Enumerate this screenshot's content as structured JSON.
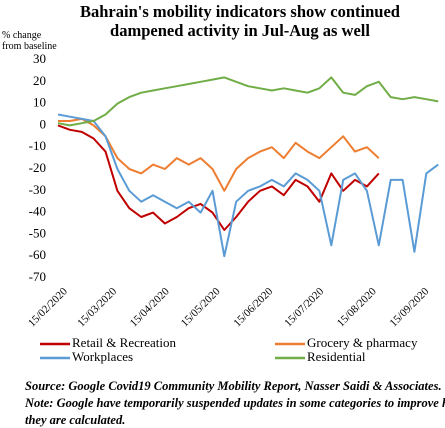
{
  "chart_data": {
    "type": "line",
    "title": "Bahrain's mobility indicators show continued dampened activity in Jul-Aug as well",
    "y_label": "% change from baseline",
    "caption": "Source: Google Covid19 Community Mobility Report, Nasser Saidi & Associates. Note: Google have temporarily suspended updates in some categories to improve how they are calculated.",
    "x": [
      "2020-02-15",
      "2020-02-22",
      "2020-02-29",
      "2020-03-07",
      "2020-03-14",
      "2020-03-21",
      "2020-03-28",
      "2020-04-04",
      "2020-04-11",
      "2020-04-18",
      "2020-04-25",
      "2020-05-02",
      "2020-05-09",
      "2020-05-16",
      "2020-05-23",
      "2020-05-30",
      "2020-06-06",
      "2020-06-13",
      "2020-06-20",
      "2020-06-27",
      "2020-07-04",
      "2020-07-11",
      "2020-07-18",
      "2020-07-25",
      "2020-08-01",
      "2020-08-08",
      "2020-08-15",
      "2020-08-22",
      "2020-08-29",
      "2020-09-05",
      "2020-09-12",
      "2020-09-19",
      "2020-09-26"
    ],
    "series": [
      {
        "name": "Retail & Recreation",
        "color": "#c00000",
        "values": [
          0,
          -2,
          -3,
          -6,
          -12,
          -30,
          -38,
          -42,
          -40,
          -45,
          -42,
          -38,
          -36,
          -40,
          -48,
          -42,
          -35,
          -30,
          -28,
          -32,
          -25,
          -28,
          -35,
          -22,
          -30,
          -25,
          -28,
          -22,
          null,
          null,
          null,
          null,
          null
        ]
      },
      {
        "name": "Grocery & pharmacy",
        "color": "#ed7d31",
        "values": [
          2,
          2,
          3,
          0,
          -5,
          -15,
          -20,
          -22,
          -18,
          -20,
          -15,
          -18,
          -15,
          -20,
          -30,
          -20,
          -15,
          -12,
          -10,
          -15,
          -8,
          -12,
          -15,
          -10,
          -5,
          -12,
          -10,
          -15,
          null,
          null,
          null,
          null,
          null
        ]
      },
      {
        "name": "Workplaces",
        "color": "#5b9bd5",
        "values": [
          5,
          4,
          3,
          2,
          -5,
          -20,
          -30,
          -35,
          -32,
          -35,
          -38,
          -35,
          -40,
          -30,
          -60,
          -35,
          -30,
          -28,
          -25,
          -28,
          -22,
          -25,
          -30,
          -55,
          -25,
          -22,
          -30,
          -55,
          -25,
          -25,
          -58,
          -22,
          -18
        ]
      },
      {
        "name": "Residential",
        "color": "#70ad47",
        "values": [
          1,
          0,
          1,
          2,
          5,
          10,
          13,
          15,
          16,
          17,
          18,
          19,
          20,
          21,
          22,
          20,
          18,
          17,
          16,
          17,
          16,
          15,
          17,
          22,
          15,
          14,
          18,
          20,
          13,
          12,
          13,
          12,
          11
        ]
      }
    ],
    "xlim": [
      "2020-02-15",
      "2020-09-30"
    ],
    "xticks": [
      {
        "value": "2020-02-15",
        "label": "15/02/2020"
      },
      {
        "value": "2020-03-15",
        "label": "15/03/2020"
      },
      {
        "value": "2020-04-15",
        "label": "15/04/2020"
      },
      {
        "value": "2020-05-15",
        "label": "15/05/2020"
      },
      {
        "value": "2020-06-15",
        "label": "15/06/2020"
      },
      {
        "value": "2020-07-15",
        "label": "15/07/2020"
      },
      {
        "value": "2020-08-15",
        "label": "15/08/2020"
      },
      {
        "value": "2020-09-15",
        "label": "15/09/2020"
      }
    ],
    "ylim": [
      -70,
      30
    ],
    "yticks": [
      30,
      20,
      10,
      0,
      -10,
      -20,
      -30,
      -40,
      -50,
      -60,
      -70
    ],
    "grid": false
  }
}
